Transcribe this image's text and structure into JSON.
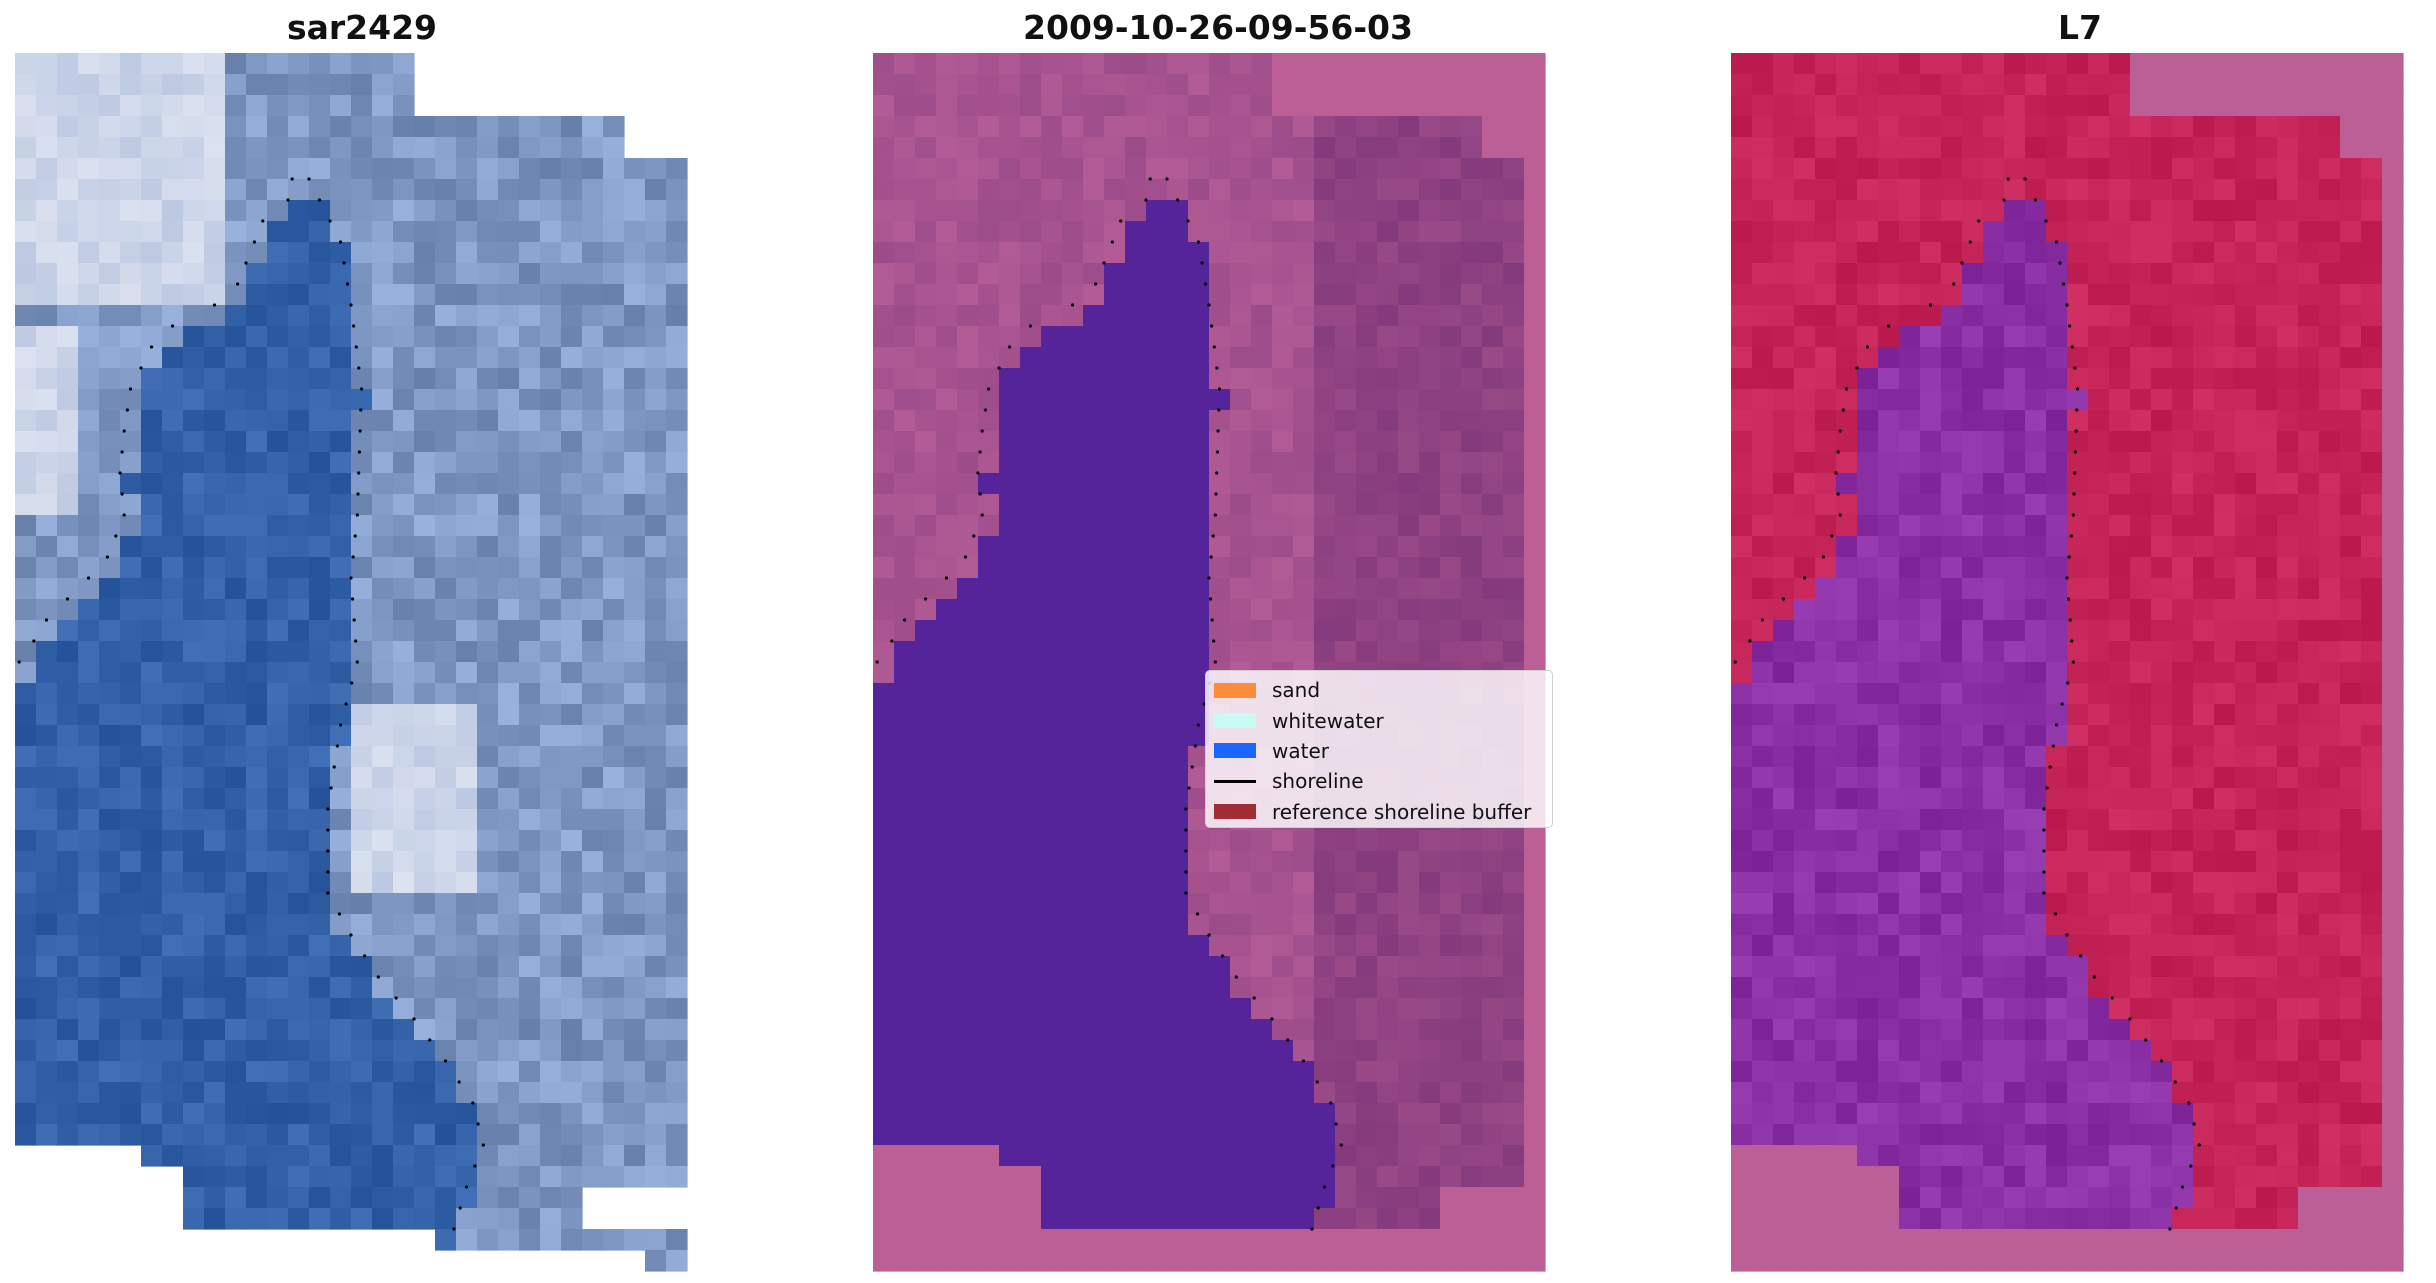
{
  "panels": [
    {
      "title": "sar2429",
      "style": "rgb"
    },
    {
      "title": "2009-10-26-09-56-03",
      "style": "classification"
    },
    {
      "title": "L7",
      "style": "ndwi"
    }
  ],
  "legend": {
    "items": [
      {
        "label": "sand",
        "color": "#fb8c3c",
        "kind": "patch"
      },
      {
        "label": "whitewater",
        "color": "#c8fbf3",
        "kind": "patch"
      },
      {
        "label": "water",
        "color": "#1a66ff",
        "kind": "patch"
      },
      {
        "label": "shoreline",
        "color": "#000000",
        "kind": "line"
      },
      {
        "label": "reference shoreline buffer",
        "color": "#a02c36",
        "kind": "patch"
      }
    ]
  },
  "colors": {
    "rgb_water": "#3261a8",
    "rgb_land": "#7f98c4",
    "class_water": "#55239a",
    "class_land": "#b65e98",
    "ndwi_water": "#8a30a4",
    "ndwi_land": "#c42458",
    "nodata_pink": "#bb5f96",
    "shoreline": "#000000"
  }
}
